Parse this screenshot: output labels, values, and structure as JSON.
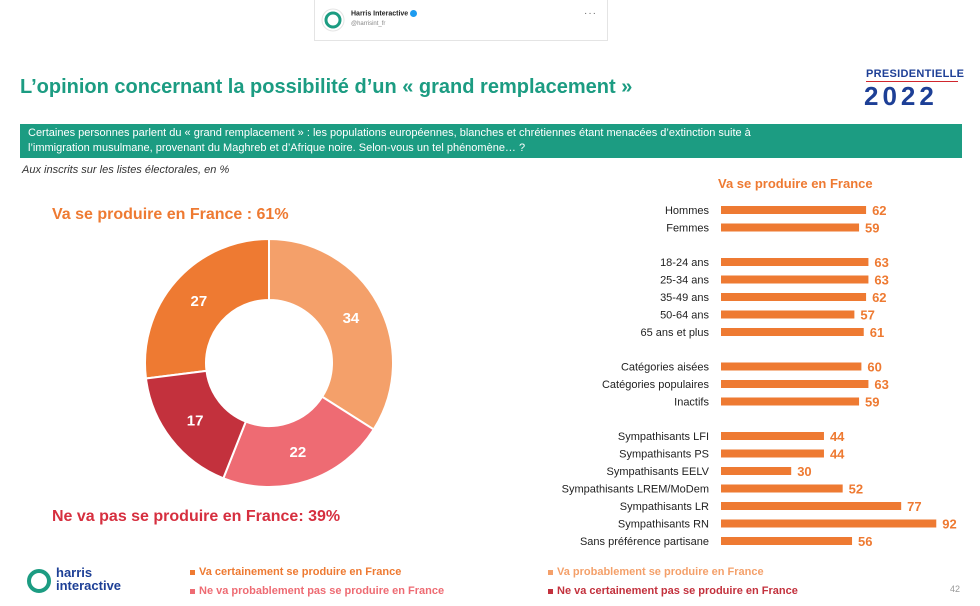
{
  "tweet": {
    "account": "Harris Interactive",
    "handle": "@harrisint_fr",
    "menu": "···"
  },
  "header": {
    "title": "L’opinion concernant la possibilité d’un « grand remplacement »",
    "election_label": "PRESIDENTIELLE",
    "election_year": "2022"
  },
  "banner": {
    "line1": "Certaines personnes parlent du « grand remplacement » : les populations européennes, blanches et chrétiennes étant menacées d’extinction suite à",
    "line2": "l’immigration musulmane,  provenant du Maghreb et d’Afrique noire. Selon-vous un tel phénomène… ?"
  },
  "note": "Aux inscrits sur les listes électorales, en %",
  "pie_labels": {
    "top": "Va se produire en France : 61%",
    "bottom": "Ne va pas se produire en France: 39%"
  },
  "legend": {
    "items": [
      {
        "label": "Va certainement se produire en France",
        "color": "#ee7a32"
      },
      {
        "label": "Va probablement se produire en France",
        "color": "#f4a06a"
      },
      {
        "label": "Ne va probablement pas se produire en France",
        "color": "#ee6b73"
      },
      {
        "label": "Ne va certainement pas se produire en France",
        "color": "#c3313d"
      }
    ]
  },
  "brand": {
    "line1": "harris",
    "line2": "interactive"
  },
  "page_number": "42",
  "colors": {
    "accent": "#1c9c82",
    "orange": "#ee7a32",
    "red": "#d62f3f",
    "navy": "#1d3f96"
  },
  "chart_data": [
    {
      "type": "pie",
      "style": "donut",
      "labels": [
        "Va certainement se produire en France",
        "Va probablement se produire en France",
        "Ne va probablement pas se produire en France",
        "Ne va certainement pas se produire en France"
      ],
      "values": [
        27,
        34,
        22,
        17
      ],
      "colors": [
        "#ee7a32",
        "#f4a06a",
        "#ee6b73",
        "#c3313d"
      ]
    },
    {
      "type": "bar",
      "orientation": "horizontal",
      "title": "Va se produire en France",
      "categories": [
        "Hommes",
        "Femmes",
        "18-24 ans",
        "25-34 ans",
        "35-49 ans",
        "50-64 ans",
        "65 ans et plus",
        "Catégories aisées",
        "Catégories populaires",
        "Inactifs",
        "Sympathisants LFI",
        "Sympathisants PS",
        "Sympathisants EELV",
        "Sympathisants LREM/MoDem",
        "Sympathisants LR",
        "Sympathisants RN",
        "Sans préférence partisane"
      ],
      "groups": [
        2,
        5,
        3,
        7
      ],
      "values": [
        62,
        59,
        63,
        63,
        62,
        57,
        61,
        60,
        63,
        59,
        44,
        44,
        30,
        52,
        77,
        92,
        56
      ],
      "color": "#ee7a32",
      "xlim": [
        0,
        100
      ],
      "grid": false
    }
  ]
}
